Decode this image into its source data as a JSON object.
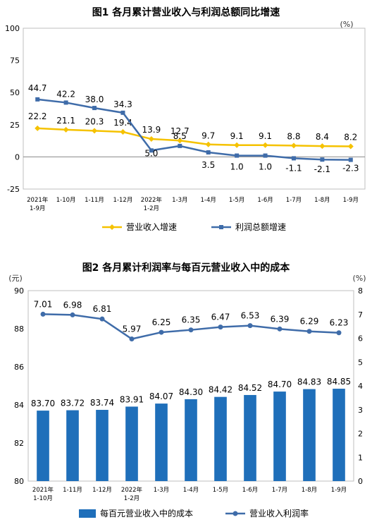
{
  "chart_data": [
    {
      "type": "line",
      "title": "图1  各月累计营业收入与利润总额同比增速",
      "unit": "(%)",
      "categories": [
        "2021年\n1-9月",
        "1-10月",
        "1-11月",
        "1-12月",
        "2022年\n1-2月",
        "1-3月",
        "1-4月",
        "1-5月",
        "1-6月",
        "1-7月",
        "1-8月",
        "1-9月"
      ],
      "ylim": [
        -25,
        100
      ],
      "yticks": [
        -25,
        0,
        25,
        50,
        75,
        100
      ],
      "grid": false,
      "legend_position": "bottom",
      "series": [
        {
          "name": "营业收入增速",
          "color": "#f5c200",
          "values": [
            22.2,
            21.1,
            20.3,
            19.4,
            13.9,
            12.7,
            9.7,
            9.1,
            9.1,
            8.8,
            8.4,
            8.2
          ]
        },
        {
          "name": "利润总额增速",
          "color": "#3f6ca9",
          "values": [
            44.7,
            42.2,
            38.0,
            34.3,
            5.0,
            8.5,
            3.5,
            1.0,
            1.0,
            -1.1,
            -2.1,
            -2.3
          ]
        }
      ]
    },
    {
      "type": "bar+line",
      "title": "图2  各月累计利润率与每百元营业收入中的成本",
      "left_unit": "(元)",
      "right_unit": "(%)",
      "categories": [
        "2021年\n1-10月",
        "1-11月",
        "1-12月",
        "2022年\n1-2月",
        "1-3月",
        "1-4月",
        "1-5月",
        "1-6月",
        "1-7月",
        "1-8月",
        "1-9月"
      ],
      "ylim_left": [
        80,
        90
      ],
      "yticks_left": [
        80,
        82,
        84,
        86,
        88,
        90
      ],
      "ylim_right": [
        0,
        8
      ],
      "yticks_right": [
        0,
        1,
        2,
        3,
        4,
        5,
        6,
        7,
        8
      ],
      "grid": false,
      "legend_position": "bottom",
      "bars": {
        "name": "每百元营业收入中的成本",
        "color": "#1f6fba",
        "values": [
          83.7,
          83.72,
          83.74,
          83.91,
          84.07,
          84.3,
          84.42,
          84.52,
          84.7,
          84.83,
          84.85
        ]
      },
      "line": {
        "name": "营业收入利润率",
        "color": "#3f6ca9",
        "values": [
          7.01,
          6.98,
          6.81,
          5.97,
          6.25,
          6.35,
          6.47,
          6.53,
          6.39,
          6.29,
          6.23
        ]
      }
    }
  ]
}
